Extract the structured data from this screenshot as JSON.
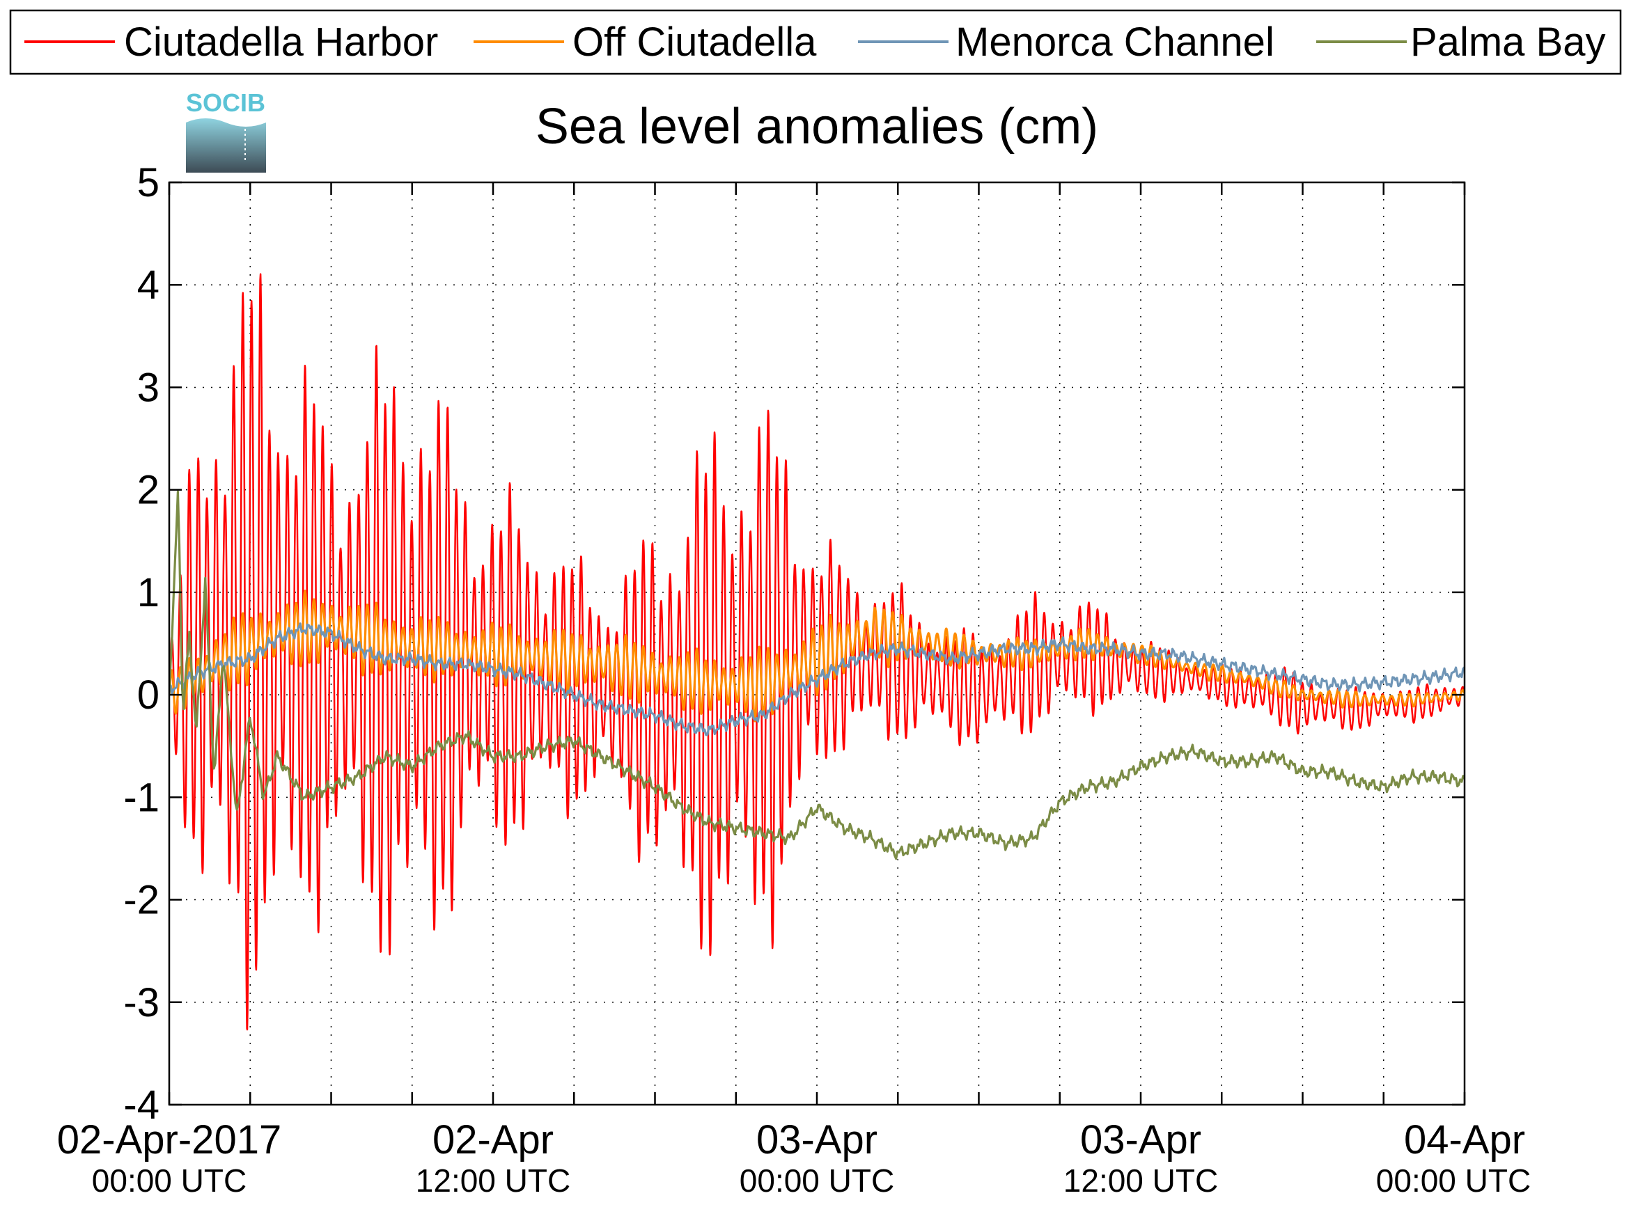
{
  "chart_data": {
    "type": "line",
    "title": "Sea level anomalies (cm)",
    "xlabel": "",
    "ylabel": "",
    "ylim": [
      -4,
      5
    ],
    "yticks": [
      -4,
      -3,
      -2,
      -1,
      0,
      1,
      2,
      3,
      4,
      5
    ],
    "xlim": [
      "2017-04-02T00:00Z",
      "2017-04-04T00:00Z"
    ],
    "x_tick_labels": [
      {
        "x": "2017-04-02T00:00Z",
        "date": "02-Apr-2017",
        "time": "00:00 UTC"
      },
      {
        "x": "2017-04-02T12:00Z",
        "date": "02-Apr",
        "time": "12:00 UTC"
      },
      {
        "x": "2017-04-03T00:00Z",
        "date": "03-Apr",
        "time": "00:00 UTC"
      },
      {
        "x": "2017-04-03T12:00Z",
        "date": "03-Apr",
        "time": "12:00 UTC"
      },
      {
        "x": "2017-04-04T00:00Z",
        "date": "04-Apr",
        "time": "00:00 UTC"
      }
    ],
    "x_minor_ticks": [
      "2017-04-02T03:00Z",
      "2017-04-02T06:00Z",
      "2017-04-02T09:00Z",
      "2017-04-02T15:00Z",
      "2017-04-02T18:00Z",
      "2017-04-02T21:00Z",
      "2017-04-03T03:00Z",
      "2017-04-03T06:00Z",
      "2017-04-03T09:00Z",
      "2017-04-03T15:00Z",
      "2017-04-03T18:00Z",
      "2017-04-03T21:00Z"
    ],
    "grid": true,
    "legend_position": "top",
    "logo_text": "SOCIB",
    "series": [
      {
        "name": "Ciutadella Harbor",
        "color": "#ff0000",
        "style": "oscillating",
        "period_hours": 0.33,
        "x": [
          "2017-04-02T00:00Z",
          "2017-04-02T01:00Z",
          "2017-04-02T02:00Z",
          "2017-04-02T03:00Z",
          "2017-04-02T04:00Z",
          "2017-04-02T05:00Z",
          "2017-04-02T06:00Z",
          "2017-04-02T07:00Z",
          "2017-04-02T08:00Z",
          "2017-04-02T09:00Z",
          "2017-04-02T10:00Z",
          "2017-04-02T11:00Z",
          "2017-04-02T12:00Z",
          "2017-04-02T13:00Z",
          "2017-04-02T14:00Z",
          "2017-04-02T15:00Z",
          "2017-04-02T16:00Z",
          "2017-04-02T17:00Z",
          "2017-04-02T18:00Z",
          "2017-04-02T19:00Z",
          "2017-04-02T20:00Z",
          "2017-04-02T21:00Z",
          "2017-04-02T22:00Z",
          "2017-04-02T23:00Z",
          "2017-04-03T00:00Z",
          "2017-04-03T01:00Z",
          "2017-04-03T02:00Z",
          "2017-04-03T03:00Z",
          "2017-04-03T04:00Z",
          "2017-04-03T05:00Z",
          "2017-04-03T06:00Z",
          "2017-04-03T07:00Z",
          "2017-04-03T08:00Z",
          "2017-04-03T09:00Z",
          "2017-04-03T10:00Z",
          "2017-04-03T11:00Z",
          "2017-04-03T12:00Z",
          "2017-04-03T13:00Z",
          "2017-04-03T14:00Z",
          "2017-04-03T15:00Z",
          "2017-04-03T16:00Z",
          "2017-04-03T17:00Z",
          "2017-04-03T18:00Z",
          "2017-04-03T19:00Z",
          "2017-04-03T20:00Z",
          "2017-04-03T21:00Z",
          "2017-04-03T22:00Z",
          "2017-04-03T23:00Z",
          "2017-04-04T00:00Z"
        ],
        "baseline": [
          0.1,
          0.35,
          0.5,
          0.6,
          0.55,
          0.45,
          0.4,
          0.4,
          0.35,
          0.35,
          0.3,
          0.3,
          0.25,
          0.2,
          0.2,
          0.1,
          0.05,
          0.0,
          -0.05,
          -0.05,
          0.0,
          0.1,
          0.2,
          0.3,
          0.35,
          0.4,
          0.35,
          0.3,
          0.2,
          0.1,
          0.05,
          0.15,
          0.3,
          0.35,
          0.4,
          0.3,
          0.25,
          0.2,
          0.15,
          0.1,
          0.05,
          0.0,
          -0.1,
          -0.1,
          -0.15,
          -0.1,
          -0.1,
          -0.05,
          0.0
        ],
        "amplitude": [
          0.3,
          2.3,
          3.2,
          3.6,
          3.3,
          2.8,
          2.2,
          2.6,
          2.9,
          3.2,
          2.6,
          2.0,
          1.8,
          1.6,
          1.5,
          1.2,
          1.1,
          1.3,
          1.7,
          2.2,
          2.5,
          2.7,
          2.6,
          2.2,
          1.2,
          0.9,
          0.85,
          0.75,
          0.6,
          0.55,
          0.55,
          0.6,
          0.65,
          0.6,
          0.55,
          0.45,
          0.3,
          0.25,
          0.2,
          0.18,
          0.25,
          0.3,
          0.28,
          0.25,
          0.2,
          0.18,
          0.17,
          0.16,
          0.15
        ]
      },
      {
        "name": "Off Ciutadella",
        "color": "#ff8c00",
        "style": "oscillating",
        "period_hours": 0.33,
        "x": [
          "2017-04-02T00:00Z",
          "2017-04-02T02:00Z",
          "2017-04-02T04:00Z",
          "2017-04-02T06:00Z",
          "2017-04-02T08:00Z",
          "2017-04-02T10:00Z",
          "2017-04-02T12:00Z",
          "2017-04-02T14:00Z",
          "2017-04-02T16:00Z",
          "2017-04-02T18:00Z",
          "2017-04-02T20:00Z",
          "2017-04-02T22:00Z",
          "2017-04-03T00:00Z",
          "2017-04-03T02:00Z",
          "2017-04-03T04:00Z",
          "2017-04-03T06:00Z",
          "2017-04-03T08:00Z",
          "2017-04-03T10:00Z",
          "2017-04-03T12:00Z",
          "2017-04-03T14:00Z",
          "2017-04-03T16:00Z",
          "2017-04-03T18:00Z",
          "2017-04-03T20:00Z",
          "2017-04-03T22:00Z",
          "2017-04-04T00:00Z"
        ],
        "baseline": [
          0.0,
          0.35,
          0.6,
          0.65,
          0.5,
          0.45,
          0.4,
          0.35,
          0.3,
          0.2,
          0.1,
          0.1,
          0.35,
          0.6,
          0.5,
          0.4,
          0.4,
          0.5,
          0.4,
          0.25,
          0.15,
          0.0,
          -0.05,
          -0.05,
          0.0
        ],
        "amplitude": [
          0.2,
          0.35,
          0.35,
          0.35,
          0.35,
          0.3,
          0.3,
          0.3,
          0.3,
          0.3,
          0.3,
          0.35,
          0.35,
          0.3,
          0.2,
          0.15,
          0.15,
          0.15,
          0.1,
          0.08,
          0.08,
          0.08,
          0.08,
          0.06,
          0.06
        ]
      },
      {
        "name": "Menorca Channel",
        "color": "#6f95b6",
        "style": "smooth",
        "x": [
          "2017-04-02T00:00Z",
          "2017-04-02T01:00Z",
          "2017-04-02T02:00Z",
          "2017-04-02T03:00Z",
          "2017-04-02T04:00Z",
          "2017-04-02T05:00Z",
          "2017-04-02T06:00Z",
          "2017-04-02T07:00Z",
          "2017-04-02T08:00Z",
          "2017-04-02T09:00Z",
          "2017-04-02T10:00Z",
          "2017-04-02T11:00Z",
          "2017-04-02T12:00Z",
          "2017-04-02T13:00Z",
          "2017-04-02T14:00Z",
          "2017-04-02T15:00Z",
          "2017-04-02T16:00Z",
          "2017-04-02T17:00Z",
          "2017-04-02T18:00Z",
          "2017-04-02T19:00Z",
          "2017-04-02T20:00Z",
          "2017-04-02T21:00Z",
          "2017-04-02T22:00Z",
          "2017-04-02T23:00Z",
          "2017-04-03T00:00Z",
          "2017-04-03T01:00Z",
          "2017-04-03T02:00Z",
          "2017-04-03T03:00Z",
          "2017-04-03T04:00Z",
          "2017-04-03T05:00Z",
          "2017-04-03T06:00Z",
          "2017-04-03T07:00Z",
          "2017-04-03T08:00Z",
          "2017-04-03T09:00Z",
          "2017-04-03T10:00Z",
          "2017-04-03T11:00Z",
          "2017-04-03T12:00Z",
          "2017-04-03T13:00Z",
          "2017-04-03T14:00Z",
          "2017-04-03T15:00Z",
          "2017-04-03T16:00Z",
          "2017-04-03T17:00Z",
          "2017-04-03T18:00Z",
          "2017-04-03T19:00Z",
          "2017-04-03T20:00Z",
          "2017-04-03T21:00Z",
          "2017-04-03T22:00Z",
          "2017-04-03T23:00Z",
          "2017-04-04T00:00Z"
        ],
        "y": [
          0.05,
          0.2,
          0.3,
          0.35,
          0.55,
          0.65,
          0.6,
          0.45,
          0.35,
          0.35,
          0.3,
          0.3,
          0.25,
          0.2,
          0.1,
          0.0,
          -0.1,
          -0.15,
          -0.2,
          -0.3,
          -0.35,
          -0.25,
          -0.2,
          0.0,
          0.15,
          0.3,
          0.4,
          0.45,
          0.4,
          0.35,
          0.4,
          0.45,
          0.45,
          0.5,
          0.45,
          0.45,
          0.4,
          0.4,
          0.35,
          0.3,
          0.25,
          0.2,
          0.15,
          0.1,
          0.1,
          0.12,
          0.15,
          0.18,
          0.22
        ]
      },
      {
        "name": "Palma Bay",
        "color": "#7b8c45",
        "style": "smooth",
        "x": [
          "2017-04-02T00:00Z",
          "2017-04-02T00:20Z",
          "2017-04-02T00:30Z",
          "2017-04-02T00:45Z",
          "2017-04-02T01:00Z",
          "2017-04-02T01:20Z",
          "2017-04-02T01:40Z",
          "2017-04-02T02:00Z",
          "2017-04-02T02:30Z",
          "2017-04-02T03:00Z",
          "2017-04-02T03:30Z",
          "2017-04-02T04:00Z",
          "2017-04-02T05:00Z",
          "2017-04-02T06:00Z",
          "2017-04-02T07:00Z",
          "2017-04-02T08:00Z",
          "2017-04-02T09:00Z",
          "2017-04-02T10:00Z",
          "2017-04-02T11:00Z",
          "2017-04-02T12:00Z",
          "2017-04-02T13:00Z",
          "2017-04-02T14:00Z",
          "2017-04-02T15:00Z",
          "2017-04-02T16:00Z",
          "2017-04-02T17:00Z",
          "2017-04-02T18:00Z",
          "2017-04-02T19:00Z",
          "2017-04-02T20:00Z",
          "2017-04-02T21:00Z",
          "2017-04-02T22:00Z",
          "2017-04-02T23:00Z",
          "2017-04-03T00:00Z",
          "2017-04-03T01:00Z",
          "2017-04-03T02:00Z",
          "2017-04-03T03:00Z",
          "2017-04-03T04:00Z",
          "2017-04-03T05:00Z",
          "2017-04-03T06:00Z",
          "2017-04-03T07:00Z",
          "2017-04-03T08:00Z",
          "2017-04-03T09:00Z",
          "2017-04-03T10:00Z",
          "2017-04-03T11:00Z",
          "2017-04-03T12:00Z",
          "2017-04-03T13:00Z",
          "2017-04-03T14:00Z",
          "2017-04-03T15:00Z",
          "2017-04-03T16:00Z",
          "2017-04-03T17:00Z",
          "2017-04-03T18:00Z",
          "2017-04-03T19:00Z",
          "2017-04-03T20:00Z",
          "2017-04-03T21:00Z",
          "2017-04-03T22:00Z",
          "2017-04-03T23:00Z",
          "2017-04-04T00:00Z"
        ],
        "y": [
          0.0,
          2.0,
          -0.2,
          0.6,
          -0.4,
          1.1,
          -0.8,
          0.4,
          -1.2,
          -0.2,
          -1.0,
          -0.6,
          -1.0,
          -0.9,
          -0.8,
          -0.6,
          -0.7,
          -0.5,
          -0.4,
          -0.6,
          -0.6,
          -0.5,
          -0.45,
          -0.6,
          -0.75,
          -0.9,
          -1.1,
          -1.25,
          -1.3,
          -1.35,
          -1.4,
          -1.1,
          -1.3,
          -1.4,
          -1.55,
          -1.45,
          -1.35,
          -1.35,
          -1.45,
          -1.4,
          -1.05,
          -0.9,
          -0.85,
          -0.7,
          -0.6,
          -0.55,
          -0.65,
          -0.65,
          -0.6,
          -0.75,
          -0.75,
          -0.85,
          -0.9,
          -0.8,
          -0.8,
          -0.85
        ]
      }
    ]
  }
}
